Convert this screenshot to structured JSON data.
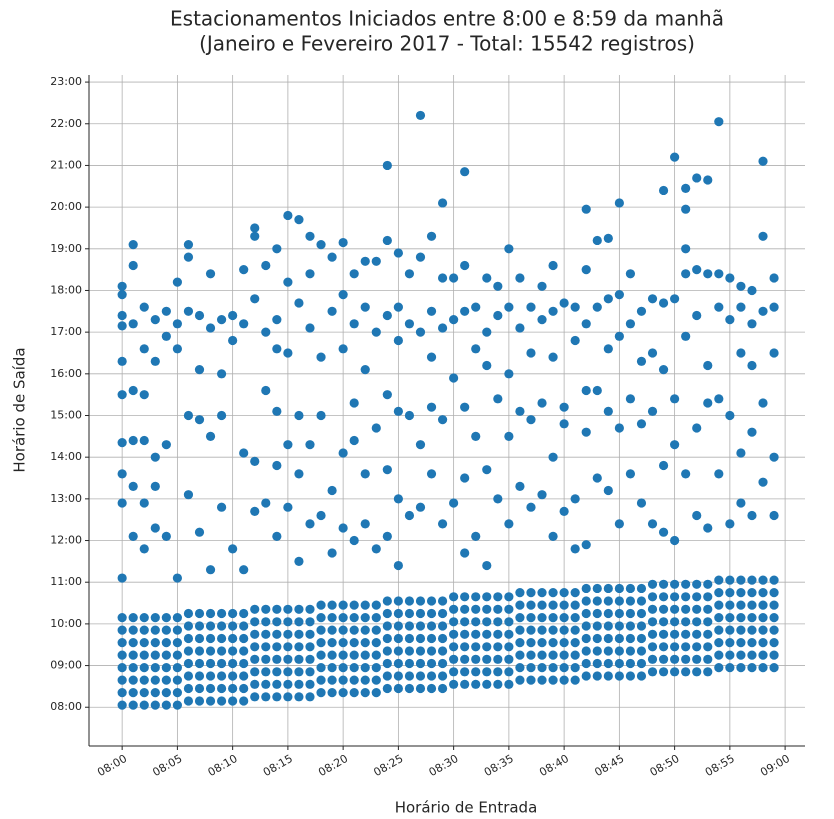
{
  "chart_data": {
    "type": "scatter",
    "title": "Estacionamentos Iniciados entre 8:00 e 8:59 da manhã",
    "subtitle": "(Janeiro e Fevereiro 2017 - Total: 15542 registros)",
    "x_label": "Horário de Entrada",
    "y_label": "Horário de Saída",
    "color": "#1f77b4",
    "grid": true,
    "xlim": [
      -3,
      61.8
    ],
    "ylim": [
      7.07,
      23.17
    ],
    "xticks": [
      {
        "value": 0,
        "label": "08:00"
      },
      {
        "value": 5,
        "label": "08:05"
      },
      {
        "value": 10,
        "label": "08:10"
      },
      {
        "value": 15,
        "label": "08:15"
      },
      {
        "value": 20,
        "label": "08:20"
      },
      {
        "value": 25,
        "label": "08:25"
      },
      {
        "value": 30,
        "label": "08:30"
      },
      {
        "value": 35,
        "label": "08:35"
      },
      {
        "value": 40,
        "label": "08:40"
      },
      {
        "value": 45,
        "label": "08:45"
      },
      {
        "value": 50,
        "label": "08:50"
      },
      {
        "value": 55,
        "label": "08:55"
      },
      {
        "value": 60,
        "label": "09:00"
      }
    ],
    "yticks": [
      {
        "value": 8,
        "label": "08:00"
      },
      {
        "value": 9,
        "label": "09:00"
      },
      {
        "value": 10,
        "label": "10:00"
      },
      {
        "value": 11,
        "label": "11:00"
      },
      {
        "value": 12,
        "label": "12:00"
      },
      {
        "value": 13,
        "label": "13:00"
      },
      {
        "value": 14,
        "label": "14:00"
      },
      {
        "value": 15,
        "label": "15:00"
      },
      {
        "value": 16,
        "label": "16:00"
      },
      {
        "value": 17,
        "label": "17:00"
      },
      {
        "value": 18,
        "label": "18:00"
      },
      {
        "value": 19,
        "label": "19:00"
      },
      {
        "value": 20,
        "label": "20:00"
      },
      {
        "value": 21,
        "label": "21:00"
      },
      {
        "value": 22,
        "label": "22:00"
      },
      {
        "value": 23,
        "label": "23:00"
      }
    ],
    "x": [
      0,
      0,
      0,
      0,
      0,
      0,
      0,
      0,
      1,
      1,
      1,
      1,
      1,
      1,
      1,
      1,
      2,
      2,
      2,
      2,
      2,
      2,
      2,
      2,
      3,
      3,
      3,
      3,
      3,
      3,
      3,
      3,
      4,
      4,
      4,
      4,
      4,
      4,
      4,
      4,
      5,
      5,
      5,
      5,
      5,
      5,
      5,
      5,
      6,
      6,
      6,
      6,
      6,
      6,
      6,
      6,
      7,
      7,
      7,
      7,
      7,
      7,
      7,
      7,
      8,
      8,
      8,
      8,
      8,
      8,
      8,
      8,
      9,
      9,
      9,
      9,
      9,
      9,
      9,
      9,
      10,
      10,
      10,
      10,
      10,
      10,
      10,
      10,
      11,
      11,
      11,
      11,
      11,
      11,
      11,
      11,
      12,
      12,
      12,
      12,
      12,
      12,
      12,
      12,
      13,
      13,
      13,
      13,
      13,
      13,
      13,
      13,
      14,
      14,
      14,
      14,
      14,
      14,
      14,
      14,
      15,
      15,
      15,
      15,
      15,
      15,
      15,
      15,
      16,
      16,
      16,
      16,
      16,
      16,
      16,
      16,
      17,
      17,
      17,
      17,
      17,
      17,
      17,
      17,
      18,
      18,
      18,
      18,
      18,
      18,
      18,
      18,
      19,
      19,
      19,
      19,
      19,
      19,
      19,
      19,
      20,
      20,
      20,
      20,
      20,
      20,
      20,
      20,
      21,
      21,
      21,
      21,
      21,
      21,
      21,
      21,
      22,
      22,
      22,
      22,
      22,
      22,
      22,
      22,
      23,
      23,
      23,
      23,
      23,
      23,
      23,
      23,
      24,
      24,
      24,
      24,
      24,
      24,
      24,
      24,
      25,
      25,
      25,
      25,
      25,
      25,
      25,
      25,
      26,
      26,
      26,
      26,
      26,
      26,
      26,
      26,
      27,
      27,
      27,
      27,
      27,
      27,
      27,
      27,
      28,
      28,
      28,
      28,
      28,
      28,
      28,
      28,
      29,
      29,
      29,
      29,
      29,
      29,
      29,
      29,
      30,
      30,
      30,
      30,
      30,
      30,
      30,
      30,
      31,
      31,
      31,
      31,
      31,
      31,
      31,
      31,
      32,
      32,
      32,
      32,
      32,
      32,
      32,
      32,
      33,
      33,
      33,
      33,
      33,
      33,
      33,
      33,
      34,
      34,
      34,
      34,
      34,
      34,
      34,
      34,
      35,
      35,
      35,
      35,
      35,
      35,
      35,
      35,
      36,
      36,
      36,
      36,
      36,
      36,
      36,
      36,
      37,
      37,
      37,
      37,
      37,
      37,
      37,
      37,
      38,
      38,
      38,
      38,
      38,
      38,
      38,
      38,
      39,
      39,
      39,
      39,
      39,
      39,
      39,
      39,
      40,
      40,
      40,
      40,
      40,
      40,
      40,
      40,
      41,
      41,
      41,
      41,
      41,
      41,
      41,
      41,
      42,
      42,
      42,
      42,
      42,
      42,
      42,
      42,
      43,
      43,
      43,
      43,
      43,
      43,
      43,
      43,
      44,
      44,
      44,
      44,
      44,
      44,
      44,
      44,
      45,
      45,
      45,
      45,
      45,
      45,
      45,
      45,
      46,
      46,
      46,
      46,
      46,
      46,
      46,
      46,
      47,
      47,
      47,
      47,
      47,
      47,
      47,
      47,
      48,
      48,
      48,
      48,
      48,
      48,
      48,
      48,
      49,
      49,
      49,
      49,
      49,
      49,
      49,
      49,
      50,
      50,
      50,
      50,
      50,
      50,
      50,
      50,
      51,
      51,
      51,
      51,
      51,
      51,
      51,
      51,
      52,
      52,
      52,
      52,
      52,
      52,
      52,
      52,
      53,
      53,
      53,
      53,
      53,
      53,
      53,
      53,
      54,
      54,
      54,
      54,
      54,
      54,
      54,
      54,
      55,
      55,
      55,
      55,
      55,
      55,
      55,
      55,
      56,
      56,
      56,
      56,
      56,
      56,
      56,
      56,
      57,
      57,
      57,
      57,
      57,
      57,
      57,
      57,
      58,
      58,
      58,
      58,
      58,
      58,
      58,
      58,
      59,
      59,
      59,
      59,
      59,
      59,
      59,
      59,
      0,
      0,
      0,
      0,
      0,
      0,
      0,
      0,
      0,
      0,
      1,
      1,
      1,
      1,
      1,
      1,
      1,
      2,
      2,
      2,
      2,
      2,
      2,
      3,
      3,
      3,
      3,
      3,
      4,
      4,
      4,
      4,
      5,
      5,
      5,
      5,
      6,
      6,
      6,
      6,
      6,
      7,
      7,
      7,
      7,
      8,
      8,
      8,
      8,
      9,
      9,
      9,
      9,
      10,
      10,
      10,
      11,
      11,
      11,
      11,
      12,
      12,
      12,
      12,
      12,
      13,
      13,
      13,
      13,
      14,
      14,
      14,
      14,
      14,
      14,
      15,
      15,
      15,
      15,
      15,
      16,
      16,
      16,
      16,
      16,
      17,
      17,
      17,
      17,
      17,
      18,
      18,
      18,
      18,
      19,
      19,
      19,
      19,
      20,
      20,
      20,
      20,
      20,
      21,
      21,
      21,
      21,
      21,
      22,
      22,
      22,
      22,
      22,
      23,
      23,
      23,
      23,
      24,
      24,
      24,
      24,
      24,
      24,
      25,
      25,
      25,
      25,
      25,
      25,
      26,
      26,
      26,
      26,
      27,
      27,
      27,
      27,
      27,
      28,
      28,
      28,
      28,
      28,
      29,
      29,
      29,
      29,
      29,
      30,
      30,
      30,
      30,
      31,
      31,
      31,
      31,
      31,
      31,
      32,
      32,
      32,
      32,
      33,
      33,
      33,
      33,
      33,
      34,
      34,
      34,
      34,
      35,
      35,
      35,
      35,
      35,
      36,
      36,
      36,
      36,
      37,
      37,
      37,
      37,
      38,
      38,
      38,
      38,
      39,
      39,
      39,
      39,
      39,
      40,
      40,
      40,
      40,
      41,
      41,
      41,
      41,
      42,
      42,
      42,
      42,
      42,
      42,
      43,
      43,
      43,
      43,
      44,
      44,
      44,
      44,
      44,
      45,
      45,
      45,
      45,
      45,
      46,
      46,
      46,
      46,
      47,
      47,
      47,
      47,
      48,
      48,
      48,
      48,
      49,
      49,
      49,
      49,
      49,
      50,
      50,
      50,
      50,
      50,
      51,
      51,
      51,
      51,
      51,
      51,
      52,
      52,
      52,
      52,
      52,
      53,
      53,
      53,
      53,
      53,
      54,
      54,
      54,
      54,
      54,
      55,
      55,
      55,
      55,
      56,
      56,
      56,
      56,
      56,
      57,
      57,
      57,
      57,
      57,
      58,
      58,
      58,
      58,
      58,
      59,
      59,
      59,
      59,
      59
    ],
    "values": [
      8.05,
      8.35,
      8.65,
      8.95,
      9.25,
      9.55,
      9.85,
      10.15,
      8.05,
      8.35,
      8.65,
      8.95,
      9.25,
      9.55,
      9.85,
      10.15,
      8.05,
      8.35,
      8.65,
      8.95,
      9.25,
      9.55,
      9.85,
      10.15,
      8.05,
      8.35,
      8.65,
      8.95,
      9.25,
      9.55,
      9.85,
      10.15,
      8.05,
      8.35,
      8.65,
      8.95,
      9.25,
      9.55,
      9.85,
      10.15,
      8.05,
      8.35,
      8.65,
      8.95,
      9.25,
      9.55,
      9.85,
      10.15,
      8.15,
      8.45,
      8.75,
      9.05,
      9.35,
      9.65,
      9.95,
      10.25,
      8.15,
      8.45,
      8.75,
      9.05,
      9.35,
      9.65,
      9.95,
      10.25,
      8.15,
      8.45,
      8.75,
      9.05,
      9.35,
      9.65,
      9.95,
      10.25,
      8.15,
      8.45,
      8.75,
      9.05,
      9.35,
      9.65,
      9.95,
      10.25,
      8.15,
      8.45,
      8.75,
      9.05,
      9.35,
      9.65,
      9.95,
      10.25,
      8.15,
      8.45,
      8.75,
      9.05,
      9.35,
      9.65,
      9.95,
      10.25,
      8.25,
      8.55,
      8.85,
      9.15,
      9.45,
      9.75,
      10.05,
      10.35,
      8.25,
      8.55,
      8.85,
      9.15,
      9.45,
      9.75,
      10.05,
      10.35,
      8.25,
      8.55,
      8.85,
      9.15,
      9.45,
      9.75,
      10.05,
      10.35,
      8.25,
      8.55,
      8.85,
      9.15,
      9.45,
      9.75,
      10.05,
      10.35,
      8.25,
      8.55,
      8.85,
      9.15,
      9.45,
      9.75,
      10.05,
      10.35,
      8.25,
      8.55,
      8.85,
      9.15,
      9.45,
      9.75,
      10.05,
      10.35,
      8.35,
      8.65,
      8.95,
      9.25,
      9.55,
      9.85,
      10.15,
      10.45,
      8.35,
      8.65,
      8.95,
      9.25,
      9.55,
      9.85,
      10.15,
      10.45,
      8.35,
      8.65,
      8.95,
      9.25,
      9.55,
      9.85,
      10.15,
      10.45,
      8.35,
      8.65,
      8.95,
      9.25,
      9.55,
      9.85,
      10.15,
      10.45,
      8.35,
      8.65,
      8.95,
      9.25,
      9.55,
      9.85,
      10.15,
      10.45,
      8.35,
      8.65,
      8.95,
      9.25,
      9.55,
      9.85,
      10.15,
      10.45,
      8.45,
      8.75,
      9.05,
      9.35,
      9.65,
      9.95,
      10.25,
      10.55,
      8.45,
      8.75,
      9.05,
      9.35,
      9.65,
      9.95,
      10.25,
      10.55,
      8.45,
      8.75,
      9.05,
      9.35,
      9.65,
      9.95,
      10.25,
      10.55,
      8.45,
      8.75,
      9.05,
      9.35,
      9.65,
      9.95,
      10.25,
      10.55,
      8.45,
      8.75,
      9.05,
      9.35,
      9.65,
      9.95,
      10.25,
      10.55,
      8.45,
      8.75,
      9.05,
      9.35,
      9.65,
      9.95,
      10.25,
      10.55,
      8.55,
      8.85,
      9.15,
      9.45,
      9.75,
      10.05,
      10.35,
      10.65,
      8.55,
      8.85,
      9.15,
      9.45,
      9.75,
      10.05,
      10.35,
      10.65,
      8.55,
      8.85,
      9.15,
      9.45,
      9.75,
      10.05,
      10.35,
      10.65,
      8.55,
      8.85,
      9.15,
      9.45,
      9.75,
      10.05,
      10.35,
      10.65,
      8.55,
      8.85,
      9.15,
      9.45,
      9.75,
      10.05,
      10.35,
      10.65,
      8.55,
      8.85,
      9.15,
      9.45,
      9.75,
      10.05,
      10.35,
      10.65,
      8.65,
      8.95,
      9.25,
      9.55,
      9.85,
      10.15,
      10.45,
      10.75,
      8.65,
      8.95,
      9.25,
      9.55,
      9.85,
      10.15,
      10.45,
      10.75,
      8.65,
      8.95,
      9.25,
      9.55,
      9.85,
      10.15,
      10.45,
      10.75,
      8.65,
      8.95,
      9.25,
      9.55,
      9.85,
      10.15,
      10.45,
      10.75,
      8.65,
      8.95,
      9.25,
      9.55,
      9.85,
      10.15,
      10.45,
      10.75,
      8.65,
      8.95,
      9.25,
      9.55,
      9.85,
      10.15,
      10.45,
      10.75,
      8.75,
      9.05,
      9.35,
      9.65,
      9.95,
      10.25,
      10.55,
      10.85,
      8.75,
      9.05,
      9.35,
      9.65,
      9.95,
      10.25,
      10.55,
      10.85,
      8.75,
      9.05,
      9.35,
      9.65,
      9.95,
      10.25,
      10.55,
      10.85,
      8.75,
      9.05,
      9.35,
      9.65,
      9.95,
      10.25,
      10.55,
      10.85,
      8.75,
      9.05,
      9.35,
      9.65,
      9.95,
      10.25,
      10.55,
      10.85,
      8.75,
      9.05,
      9.35,
      9.65,
      9.95,
      10.25,
      10.55,
      10.85,
      8.85,
      9.15,
      9.45,
      9.75,
      10.05,
      10.35,
      10.65,
      10.95,
      8.85,
      9.15,
      9.45,
      9.75,
      10.05,
      10.35,
      10.65,
      10.95,
      8.85,
      9.15,
      9.45,
      9.75,
      10.05,
      10.35,
      10.65,
      10.95,
      8.85,
      9.15,
      9.45,
      9.75,
      10.05,
      10.35,
      10.65,
      10.95,
      8.85,
      9.15,
      9.45,
      9.75,
      10.05,
      10.35,
      10.65,
      10.95,
      8.85,
      9.15,
      9.45,
      9.75,
      10.05,
      10.35,
      10.65,
      10.95,
      8.95,
      9.25,
      9.55,
      9.85,
      10.15,
      10.45,
      10.75,
      11.05,
      8.95,
      9.25,
      9.55,
      9.85,
      10.15,
      10.45,
      10.75,
      11.05,
      8.95,
      9.25,
      9.55,
      9.85,
      10.15,
      10.45,
      10.75,
      11.05,
      8.95,
      9.25,
      9.55,
      9.85,
      10.15,
      10.45,
      10.75,
      11.05,
      8.95,
      9.25,
      9.55,
      9.85,
      10.15,
      10.45,
      10.75,
      11.05,
      8.95,
      9.25,
      9.55,
      9.85,
      10.15,
      10.45,
      10.75,
      11.05,
      18.1,
      17.9,
      17.4,
      17.15,
      16.3,
      15.5,
      14.35,
      13.6,
      12.9,
      11.1,
      19.1,
      18.6,
      17.2,
      15.6,
      14.4,
      13.3,
      12.1,
      17.6,
      16.6,
      15.5,
      14.4,
      12.9,
      11.8,
      17.3,
      16.3,
      14.0,
      13.3,
      12.3,
      17.5,
      16.9,
      14.3,
      12.1,
      18.2,
      17.2,
      16.6,
      11.1,
      19.1,
      18.8,
      17.5,
      15.0,
      13.1,
      17.4,
      16.1,
      14.9,
      12.2,
      18.4,
      17.1,
      14.5,
      11.3,
      17.3,
      16.0,
      15.0,
      12.8,
      17.4,
      16.8,
      11.8,
      18.5,
      17.2,
      14.1,
      11.3,
      19.5,
      19.3,
      17.8,
      13.9,
      12.7,
      18.6,
      17.0,
      15.6,
      12.9,
      19.0,
      17.3,
      16.6,
      15.1,
      13.8,
      12.1,
      19.8,
      18.2,
      16.5,
      14.3,
      12.8,
      19.7,
      17.7,
      15.0,
      13.6,
      11.5,
      19.3,
      18.4,
      17.1,
      14.3,
      12.4,
      19.1,
      16.4,
      15.0,
      12.6,
      18.8,
      17.5,
      13.2,
      11.7,
      19.15,
      17.9,
      16.6,
      14.1,
      12.3,
      18.4,
      17.2,
      15.3,
      14.4,
      12.0,
      18.7,
      17.6,
      16.1,
      13.6,
      12.4,
      18.7,
      17.0,
      14.7,
      11.8,
      21.0,
      19.2,
      17.4,
      15.5,
      13.7,
      12.1,
      18.9,
      17.6,
      16.8,
      15.1,
      13.0,
      11.4,
      18.4,
      17.2,
      15.0,
      12.6,
      22.2,
      18.8,
      17.0,
      14.3,
      12.8,
      19.3,
      17.5,
      16.4,
      15.2,
      13.6,
      20.1,
      18.3,
      17.1,
      14.9,
      12.4,
      18.3,
      17.3,
      15.9,
      12.9,
      20.85,
      18.6,
      17.5,
      15.2,
      13.5,
      11.7,
      17.6,
      16.6,
      14.5,
      12.1,
      18.3,
      17.0,
      16.2,
      13.7,
      11.4,
      18.1,
      17.4,
      15.4,
      13.0,
      19.0,
      17.6,
      16.0,
      14.5,
      12.4,
      18.3,
      17.1,
      15.1,
      13.3,
      17.6,
      16.5,
      14.9,
      12.8,
      18.1,
      17.3,
      15.3,
      13.1,
      18.6,
      17.5,
      16.4,
      14.0,
      12.1,
      17.7,
      15.2,
      14.8,
      12.7,
      17.6,
      16.8,
      13.0,
      11.8,
      19.95,
      18.5,
      17.2,
      15.6,
      14.6,
      11.9,
      19.2,
      17.6,
      15.6,
      13.5,
      19.25,
      17.8,
      16.6,
      15.1,
      13.2,
      20.1,
      17.9,
      16.9,
      14.7,
      12.4,
      18.4,
      17.2,
      15.4,
      13.6,
      17.5,
      16.3,
      14.8,
      12.9,
      17.8,
      16.5,
      15.1,
      12.4,
      20.4,
      17.7,
      16.1,
      13.8,
      12.2,
      21.2,
      17.8,
      15.4,
      14.3,
      12.0,
      20.45,
      19.95,
      19.0,
      18.4,
      16.9,
      13.6,
      20.7,
      18.5,
      17.4,
      14.7,
      12.6,
      20.65,
      18.4,
      16.2,
      15.3,
      12.3,
      22.05,
      18.4,
      17.6,
      15.4,
      13.6,
      18.3,
      17.3,
      15.0,
      12.4,
      18.1,
      17.6,
      16.5,
      14.1,
      12.9,
      18.0,
      17.2,
      16.2,
      14.6,
      12.6,
      21.1,
      19.3,
      17.5,
      15.3,
      13.4,
      18.3,
      17.6,
      16.5,
      14.0,
      12.6
    ]
  }
}
